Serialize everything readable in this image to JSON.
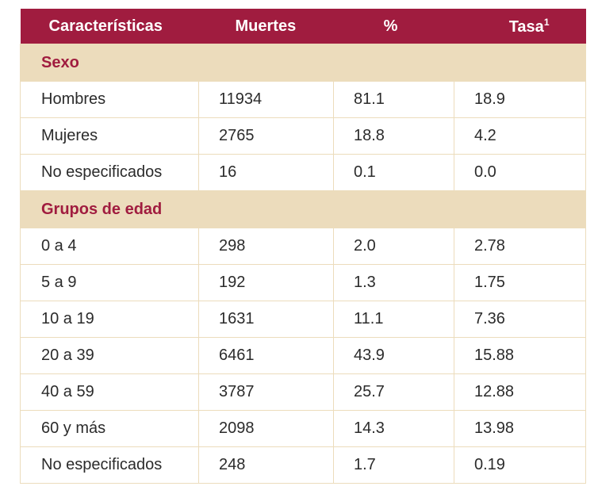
{
  "header": {
    "col1": "Características",
    "col2": "Muertes",
    "col3": "%",
    "col4": "Tasa",
    "col4_sup": "1"
  },
  "sections": [
    {
      "title": "Sexo",
      "rows": [
        [
          "Hombres",
          "11934",
          "81.1",
          "18.9"
        ],
        [
          "Mujeres",
          "2765",
          "18.8",
          "4.2"
        ],
        [
          "No especificados",
          "16",
          "0.1",
          "0.0"
        ]
      ]
    },
    {
      "title": "Grupos de edad",
      "rows": [
        [
          "0 a 4",
          "298",
          "2.0",
          "2.78"
        ],
        [
          "5 a 9",
          "192",
          "1.3",
          "1.75"
        ],
        [
          "10 a 19",
          "1631",
          "11.1",
          "7.36"
        ],
        [
          "20 a 39",
          "6461",
          "43.9",
          "15.88"
        ],
        [
          "40 a 59",
          "3787",
          "25.7",
          "12.88"
        ],
        [
          "60 y más",
          "2098",
          "14.3",
          "13.98"
        ],
        [
          "No especificados",
          "248",
          "1.7",
          "0.19"
        ]
      ]
    }
  ],
  "colors": {
    "header_bg": "#a01c3f",
    "section_bg": "#ecdcbc",
    "section_text": "#a01c3f"
  }
}
